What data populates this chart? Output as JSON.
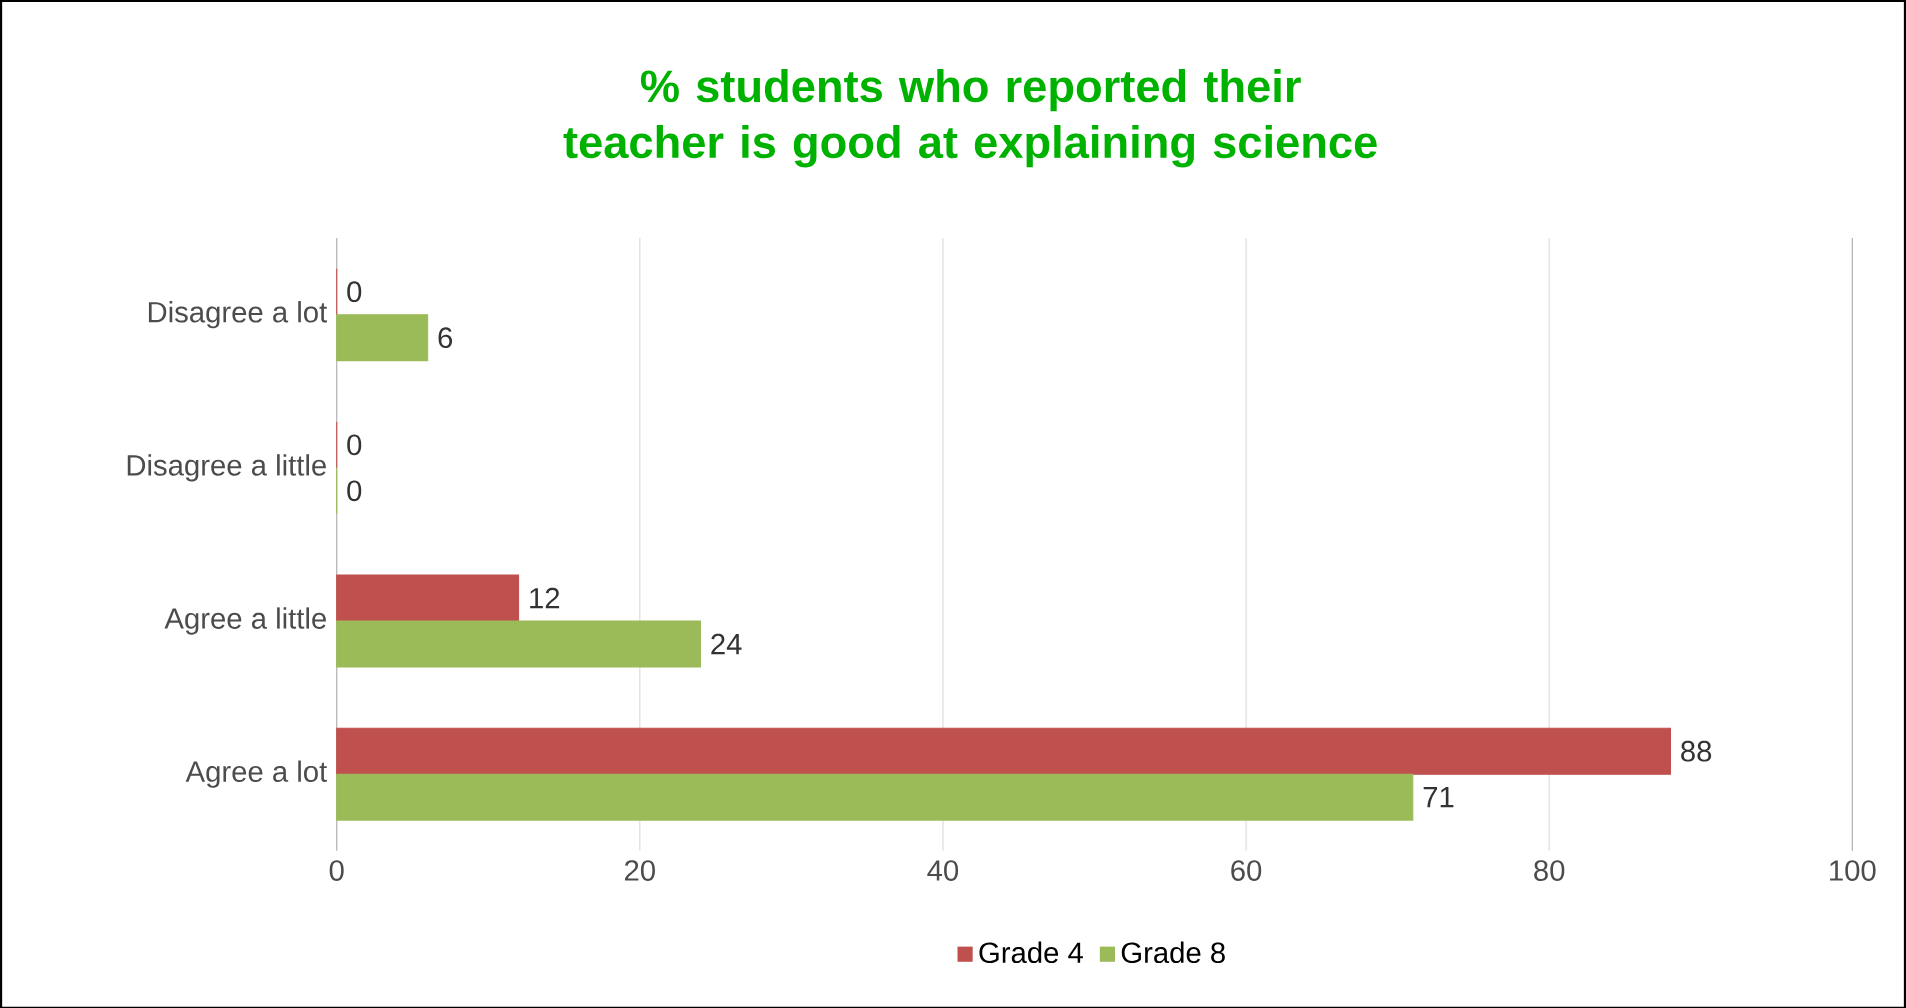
{
  "chart_data": {
    "type": "bar",
    "orientation": "horizontal",
    "title": "% students who reported their teacher is good at explaining science",
    "categories": [
      "Disagree a lot",
      "Disagree a little",
      "Agree a little",
      "Agree a lot"
    ],
    "series": [
      {
        "name": "Grade 4",
        "color": "#c0504d",
        "values": [
          0,
          0,
          12,
          88
        ]
      },
      {
        "name": "Grade 8",
        "color": "#9bbb59",
        "values": [
          6,
          0,
          24,
          71
        ]
      }
    ],
    "xlim": [
      0,
      100
    ],
    "xticks": [
      0,
      20,
      40,
      60,
      80,
      100
    ],
    "grid": "x",
    "legend": "bottom",
    "data_labels": true
  }
}
